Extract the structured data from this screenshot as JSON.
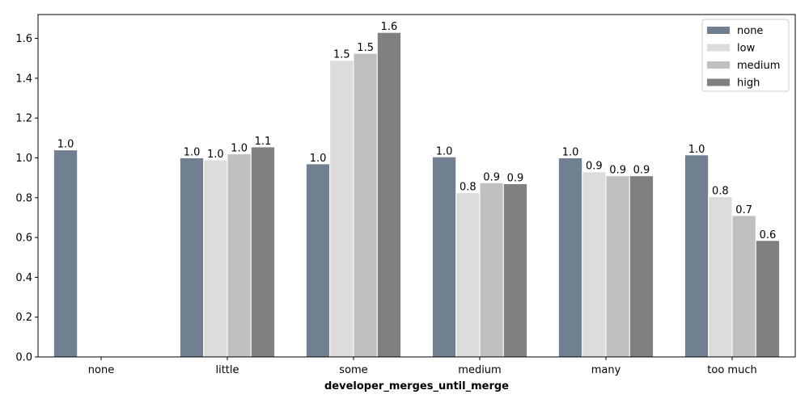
{
  "chart_data": {
    "type": "bar",
    "xlabel": "developer_merges_until_merge",
    "ylabel": "",
    "categories": [
      "none",
      "little",
      "some",
      "medium",
      "many",
      "too much"
    ],
    "ylim": [
      0,
      1.72
    ],
    "yticks": [
      "0.0",
      "0.2",
      "0.4",
      "0.6",
      "0.8",
      "1.0",
      "1.2",
      "1.4",
      "1.6"
    ],
    "grid": false,
    "legend_position": "top-right",
    "series": [
      {
        "name": "none",
        "color": "#708090",
        "values": [
          1.04,
          1.0,
          0.97,
          1.005,
          1.0,
          1.015
        ],
        "labels": [
          "1.0",
          "1.0",
          "1.0",
          "1.0",
          "1.0",
          "1.0"
        ]
      },
      {
        "name": "low",
        "color": "#dcdcdc",
        "values": [
          null,
          0.99,
          1.49,
          0.825,
          0.93,
          0.805
        ],
        "labels": [
          "",
          "1.0",
          "1.5",
          "0.8",
          "0.9",
          "0.8"
        ]
      },
      {
        "name": "medium",
        "color": "#c0c0c0",
        "values": [
          null,
          1.02,
          1.525,
          0.875,
          0.91,
          0.71
        ],
        "labels": [
          "",
          "1.0",
          "1.5",
          "0.9",
          "0.9",
          "0.7"
        ]
      },
      {
        "name": "high",
        "color": "#808080",
        "values": [
          null,
          1.055,
          1.63,
          0.87,
          0.91,
          0.585
        ],
        "labels": [
          "",
          "1.1",
          "1.6",
          "0.9",
          "0.9",
          "0.6"
        ]
      }
    ]
  }
}
